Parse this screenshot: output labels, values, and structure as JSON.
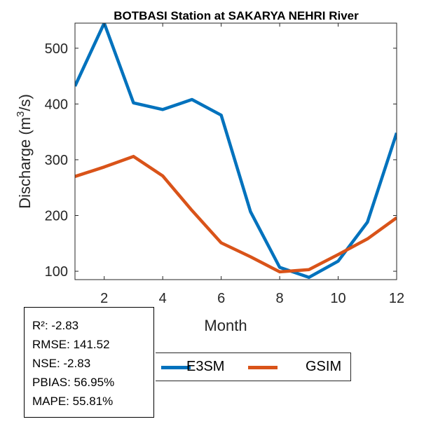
{
  "chart_data": {
    "type": "line",
    "title": "BOTBASI  Station at  SAKARYA NEHRI  River",
    "xlabel": "Month",
    "ylabel_main": "Discharge (m",
    "ylabel_sup": "3",
    "ylabel_tail": "/s)",
    "xlim": [
      1,
      12
    ],
    "ylim": [
      85,
      545
    ],
    "xticks": [
      2,
      4,
      6,
      8,
      10,
      12
    ],
    "yticks": [
      100,
      200,
      300,
      400,
      500
    ],
    "x": [
      1,
      2,
      3,
      4,
      5,
      6,
      7,
      8,
      9,
      10,
      11,
      12
    ],
    "series": [
      {
        "name": "E3SM",
        "color": "#0072BD",
        "values": [
          432,
          545,
          402,
          390,
          408,
          380,
          207,
          107,
          89,
          118,
          188,
          348
        ]
      },
      {
        "name": "GSIM",
        "color": "#D95319",
        "values": [
          270,
          287,
          306,
          271,
          209,
          151,
          126,
          99,
          103,
          130,
          158,
          196
        ]
      }
    ]
  },
  "stats": [
    "R²: -2.83",
    "RMSE: 141.52",
    "NSE: -2.83",
    "PBIAS: 56.95%",
    "MAPE: 55.81%"
  ]
}
